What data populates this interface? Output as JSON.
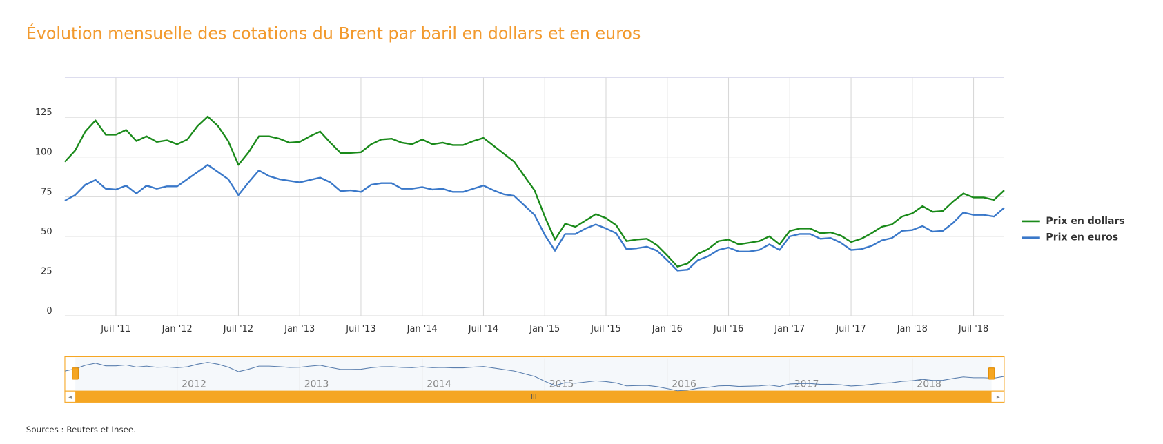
{
  "chart_data": {
    "type": "line",
    "title": "Évolution mensuelle des cotations du Brent par baril en dollars et en euros",
    "source": "Sources : Reuters et Insee.",
    "x": [
      "2011-02",
      "2011-03",
      "2011-04",
      "2011-05",
      "2011-06",
      "2011-07",
      "2011-08",
      "2011-09",
      "2011-10",
      "2011-11",
      "2011-12",
      "2012-01",
      "2012-02",
      "2012-03",
      "2012-04",
      "2012-05",
      "2012-06",
      "2012-07",
      "2012-08",
      "2012-09",
      "2012-10",
      "2012-11",
      "2012-12",
      "2013-01",
      "2013-02",
      "2013-03",
      "2013-04",
      "2013-05",
      "2013-06",
      "2013-07",
      "2013-08",
      "2013-09",
      "2013-10",
      "2013-11",
      "2013-12",
      "2014-01",
      "2014-02",
      "2014-03",
      "2014-04",
      "2014-05",
      "2014-06",
      "2014-07",
      "2014-08",
      "2014-09",
      "2014-10",
      "2014-11",
      "2014-12",
      "2015-01",
      "2015-02",
      "2015-03",
      "2015-04",
      "2015-05",
      "2015-06",
      "2015-07",
      "2015-08",
      "2015-09",
      "2015-10",
      "2015-11",
      "2015-12",
      "2016-01",
      "2016-02",
      "2016-03",
      "2016-04",
      "2016-05",
      "2016-06",
      "2016-07",
      "2016-08",
      "2016-09",
      "2016-10",
      "2016-11",
      "2016-12",
      "2017-01",
      "2017-02",
      "2017-03",
      "2017-04",
      "2017-05",
      "2017-06",
      "2017-07",
      "2017-08",
      "2017-09",
      "2017-10",
      "2017-11",
      "2017-12",
      "2018-01",
      "2018-02",
      "2018-03",
      "2018-04",
      "2018-05",
      "2018-06",
      "2018-07",
      "2018-08",
      "2018-09",
      "2018-10"
    ],
    "series": [
      {
        "name": "Prix en dollars",
        "color": "#1a8a1a",
        "values": [
          97,
          104,
          116,
          123,
          114,
          114,
          117,
          110,
          113,
          109.5,
          110.5,
          108,
          111,
          119.5,
          125.5,
          119.5,
          110,
          95,
          103,
          113,
          113,
          111.5,
          109,
          109.5,
          113,
          116,
          109,
          102.5,
          102.5,
          103,
          108,
          111,
          111.5,
          109,
          108,
          111,
          108,
          109,
          107.5,
          107.5,
          110,
          112,
          107,
          102,
          97,
          88,
          79,
          62.5,
          48,
          58,
          56,
          60,
          64,
          61.5,
          57,
          47,
          48,
          48.5,
          44.5,
          38,
          31,
          33,
          39,
          42,
          47,
          48,
          45,
          46,
          47,
          50,
          45,
          53.5,
          55,
          55,
          52,
          52.5,
          50.5,
          46.5,
          48.5,
          52,
          56,
          57.5,
          62.5,
          64.5,
          69,
          65.5,
          66,
          72,
          77,
          74.5,
          74.5,
          73,
          79
        ]
      },
      {
        "name": "Prix en euros",
        "color": "#3a78c9",
        "values": [
          72.5,
          76,
          82.5,
          85.5,
          80,
          79.5,
          82,
          77,
          82,
          80,
          81.5,
          81.5,
          86,
          90.5,
          95,
          90.5,
          86,
          76,
          84,
          91.5,
          88,
          86,
          85,
          84,
          85.5,
          87,
          84,
          78.5,
          79,
          78,
          82.5,
          83.5,
          83.5,
          80,
          80,
          81,
          79.5,
          80,
          78,
          78,
          80,
          82,
          79,
          76.5,
          75.5,
          69.5,
          63.5,
          51,
          41,
          51.5,
          51.5,
          55,
          57.5,
          55,
          52,
          42,
          42.5,
          43.5,
          41,
          35,
          28.5,
          29,
          35,
          37.5,
          41.5,
          43,
          40.5,
          40.5,
          41.5,
          45,
          41.5,
          50,
          51.5,
          51.5,
          48.5,
          49,
          46,
          41.5,
          42,
          44,
          47.5,
          49,
          53.5,
          54,
          56.5,
          53,
          53.5,
          58.5,
          65,
          63.5,
          63.5,
          62.5,
          68
        ]
      }
    ],
    "xlim": [
      "2011-02",
      "2018-10"
    ],
    "xticks": [
      {
        "value": "2011-07",
        "label": "Juil '11"
      },
      {
        "value": "2012-01",
        "label": "Jan '12"
      },
      {
        "value": "2012-07",
        "label": "Juil '12"
      },
      {
        "value": "2013-01",
        "label": "Jan '13"
      },
      {
        "value": "2013-07",
        "label": "Juil '13"
      },
      {
        "value": "2014-01",
        "label": "Jan '14"
      },
      {
        "value": "2014-07",
        "label": "Juil '14"
      },
      {
        "value": "2015-01",
        "label": "Jan '15"
      },
      {
        "value": "2015-07",
        "label": "Juil '15"
      },
      {
        "value": "2016-01",
        "label": "Jan '16"
      },
      {
        "value": "2016-07",
        "label": "Juil '16"
      },
      {
        "value": "2017-01",
        "label": "Jan '17"
      },
      {
        "value": "2017-07",
        "label": "Juil '17"
      },
      {
        "value": "2018-01",
        "label": "Jan '18"
      },
      {
        "value": "2018-07",
        "label": "Juil '18"
      }
    ],
    "ylim": [
      0,
      150
    ],
    "yticks": [
      0,
      25,
      50,
      75,
      100,
      125
    ],
    "grid": true,
    "legend": "right",
    "navigator": {
      "xticks": [
        {
          "value": "2012-01",
          "label": "2012"
        },
        {
          "value": "2013-01",
          "label": "2013"
        },
        {
          "value": "2014-01",
          "label": "2014"
        },
        {
          "value": "2015-01",
          "label": "2015"
        },
        {
          "value": "2016-01",
          "label": "2016"
        },
        {
          "value": "2017-01",
          "label": "2017"
        },
        {
          "value": "2018-01",
          "label": "2018"
        }
      ]
    }
  }
}
